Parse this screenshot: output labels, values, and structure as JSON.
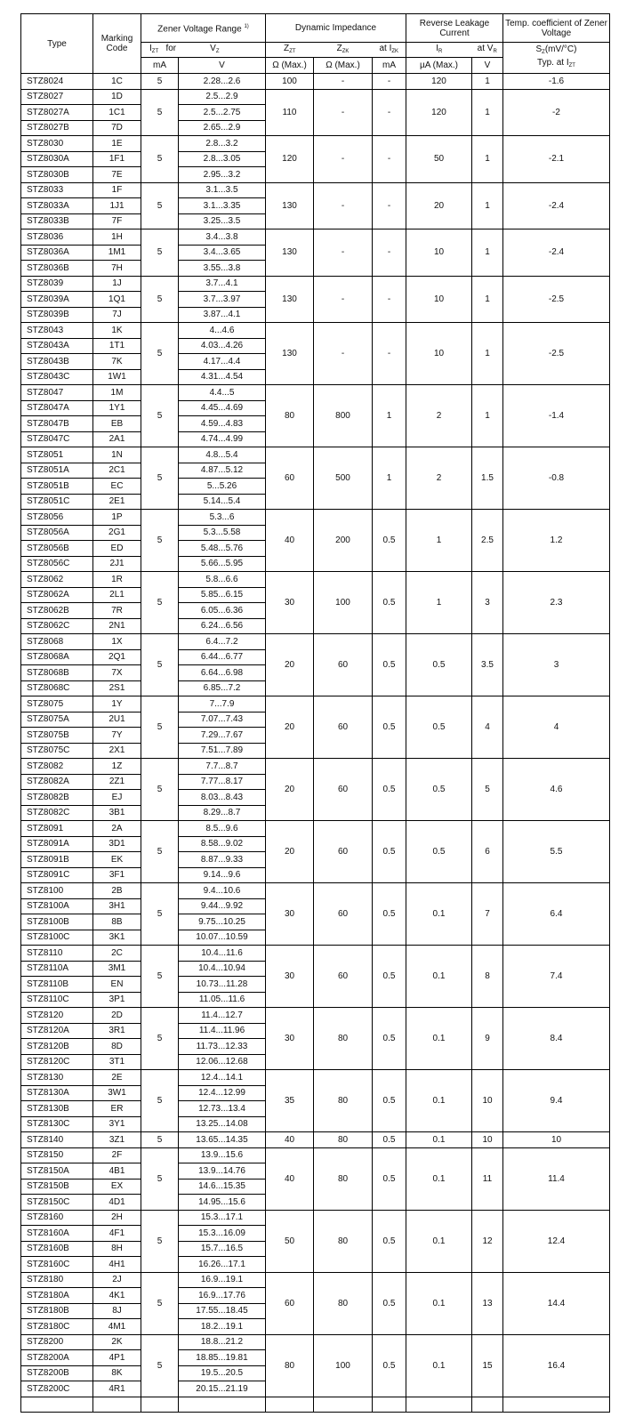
{
  "header": {
    "type": "Type",
    "marking": "Marking Code",
    "zener_range": "Zener Voltage Range",
    "zener_note": "1)",
    "dynamic": "Dynamic Impedance",
    "leakage": "Reverse Leakage Current",
    "tempco": "Temp. coefficient of Zener Voltage",
    "izt": "I",
    "izt_sub": "ZT",
    "for": "for",
    "vz": "V",
    "vz_sub": "Z",
    "zzt": "Z",
    "zzt_sub": "ZT",
    "zzk": "Z",
    "zzk_sub": "ZK",
    "atizk": "at I",
    "atizk_sub": "ZK",
    "ir": "I",
    "ir_sub": "R",
    "atvr": "at V",
    "atvr_sub": "R",
    "sz": "S",
    "sz_sub": "Z",
    "sz_unit": "(mV/°C)",
    "typ": "Typ. at I",
    "typ_sub": "ZT",
    "u_ma": "mA",
    "u_v": "V",
    "u_ohm1": "Ω (Max.)",
    "u_ohm2": "Ω (Max.)",
    "u_ma2": "mA",
    "u_ua": "µA (Max.)",
    "u_v2": "V"
  },
  "groups": [
    {
      "izt": "5",
      "zzt": "100",
      "zzk": "-",
      "izk": "-",
      "ir": "120",
      "vr": "1",
      "tc": "-1.6",
      "rows": [
        [
          "STZ8024",
          "1C",
          "2.28...2.6"
        ]
      ]
    },
    {
      "izt": "5",
      "zzt": "110",
      "zzk": "-",
      "izk": "-",
      "ir": "120",
      "vr": "1",
      "tc": "-2",
      "rows": [
        [
          "STZ8027",
          "1D",
          "2.5...2.9"
        ],
        [
          "STZ8027A",
          "1C1",
          "2.5...2.75"
        ],
        [
          "STZ8027B",
          "7D",
          "2.65...2.9"
        ]
      ]
    },
    {
      "izt": "5",
      "zzt": "120",
      "zzk": "-",
      "izk": "-",
      "ir": "50",
      "vr": "1",
      "tc": "-2.1",
      "rows": [
        [
          "STZ8030",
          "1E",
          "2.8...3.2"
        ],
        [
          "STZ8030A",
          "1F1",
          "2.8...3.05"
        ],
        [
          "STZ8030B",
          "7E",
          "2.95...3.2"
        ]
      ]
    },
    {
      "izt": "5",
      "zzt": "130",
      "zzk": "-",
      "izk": "-",
      "ir": "20",
      "vr": "1",
      "tc": "-2.4",
      "rows": [
        [
          "STZ8033",
          "1F",
          "3.1...3.5"
        ],
        [
          "STZ8033A",
          "1J1",
          "3.1...3.35"
        ],
        [
          "STZ8033B",
          "7F",
          "3.25...3.5"
        ]
      ]
    },
    {
      "izt": "5",
      "zzt": "130",
      "zzk": "-",
      "izk": "-",
      "ir": "10",
      "vr": "1",
      "tc": "-2.4",
      "rows": [
        [
          "STZ8036",
          "1H",
          "3.4...3.8"
        ],
        [
          "STZ8036A",
          "1M1",
          "3.4...3.65"
        ],
        [
          "STZ8036B",
          "7H",
          "3.55...3.8"
        ]
      ]
    },
    {
      "izt": "5",
      "zzt": "130",
      "zzk": "-",
      "izk": "-",
      "ir": "10",
      "vr": "1",
      "tc": "-2.5",
      "rows": [
        [
          "STZ8039",
          "1J",
          "3.7...4.1"
        ],
        [
          "STZ8039A",
          "1Q1",
          "3.7...3.97"
        ],
        [
          "STZ8039B",
          "7J",
          "3.87...4.1"
        ]
      ]
    },
    {
      "izt": "5",
      "zzt": "130",
      "zzk": "-",
      "izk": "-",
      "ir": "10",
      "vr": "1",
      "tc": "-2.5",
      "rows": [
        [
          "STZ8043",
          "1K",
          "4...4.6"
        ],
        [
          "STZ8043A",
          "1T1",
          "4.03...4.26"
        ],
        [
          "STZ8043B",
          "7K",
          "4.17...4.4"
        ],
        [
          "STZ8043C",
          "1W1",
          "4.31...4.54"
        ]
      ]
    },
    {
      "izt": "5",
      "zzt": "80",
      "zzk": "800",
      "izk": "1",
      "ir": "2",
      "vr": "1",
      "tc": "-1.4",
      "rows": [
        [
          "STZ8047",
          "1M",
          "4.4...5"
        ],
        [
          "STZ8047A",
          "1Y1",
          "4.45...4.69"
        ],
        [
          "STZ8047B",
          "EB",
          "4.59...4.83"
        ],
        [
          "STZ8047C",
          "2A1",
          "4.74...4.99"
        ]
      ]
    },
    {
      "izt": "5",
      "zzt": "60",
      "zzk": "500",
      "izk": "1",
      "ir": "2",
      "vr": "1.5",
      "tc": "-0.8",
      "rows": [
        [
          "STZ8051",
          "1N",
          "4.8...5.4"
        ],
        [
          "STZ8051A",
          "2C1",
          "4.87...5.12"
        ],
        [
          "STZ8051B",
          "EC",
          "5...5.26"
        ],
        [
          "STZ8051C",
          "2E1",
          "5.14...5.4"
        ]
      ]
    },
    {
      "izt": "5",
      "zzt": "40",
      "zzk": "200",
      "izk": "0.5",
      "ir": "1",
      "vr": "2.5",
      "tc": "1.2",
      "rows": [
        [
          "STZ8056",
          "1P",
          "5.3...6"
        ],
        [
          "STZ8056A",
          "2G1",
          "5.3...5.58"
        ],
        [
          "STZ8056B",
          "ED",
          "5.48...5.76"
        ],
        [
          "STZ8056C",
          "2J1",
          "5.66...5.95"
        ]
      ]
    },
    {
      "izt": "5",
      "zzt": "30",
      "zzk": "100",
      "izk": "0.5",
      "ir": "1",
      "vr": "3",
      "tc": "2.3",
      "rows": [
        [
          "STZ8062",
          "1R",
          "5.8...6.6"
        ],
        [
          "STZ8062A",
          "2L1",
          "5.85...6.15"
        ],
        [
          "STZ8062B",
          "7R",
          "6.05...6.36"
        ],
        [
          "STZ8062C",
          "2N1",
          "6.24...6.56"
        ]
      ]
    },
    {
      "izt": "5",
      "zzt": "20",
      "zzk": "60",
      "izk": "0.5",
      "ir": "0.5",
      "vr": "3.5",
      "tc": "3",
      "rows": [
        [
          "STZ8068",
          "1X",
          "6.4...7.2"
        ],
        [
          "STZ8068A",
          "2Q1",
          "6.44...6.77"
        ],
        [
          "STZ8068B",
          "7X",
          "6.64...6.98"
        ],
        [
          "STZ8068C",
          "2S1",
          "6.85...7.2"
        ]
      ]
    },
    {
      "izt": "5",
      "zzt": "20",
      "zzk": "60",
      "izk": "0.5",
      "ir": "0.5",
      "vr": "4",
      "tc": "4",
      "rows": [
        [
          "STZ8075",
          "1Y",
          "7...7.9"
        ],
        [
          "STZ8075A",
          "2U1",
          "7.07...7.43"
        ],
        [
          "STZ8075B",
          "7Y",
          "7.29...7.67"
        ],
        [
          "STZ8075C",
          "2X1",
          "7.51...7.89"
        ]
      ]
    },
    {
      "izt": "5",
      "zzt": "20",
      "zzk": "60",
      "izk": "0.5",
      "ir": "0.5",
      "vr": "5",
      "tc": "4.6",
      "rows": [
        [
          "STZ8082",
          "1Z",
          "7.7...8.7"
        ],
        [
          "STZ8082A",
          "2Z1",
          "7.77...8.17"
        ],
        [
          "STZ8082B",
          "EJ",
          "8.03...8.43"
        ],
        [
          "STZ8082C",
          "3B1",
          "8.29...8.7"
        ]
      ]
    },
    {
      "izt": "5",
      "zzt": "20",
      "zzk": "60",
      "izk": "0.5",
      "ir": "0.5",
      "vr": "6",
      "tc": "5.5",
      "rows": [
        [
          "STZ8091",
          "2A",
          "8.5...9.6"
        ],
        [
          "STZ8091A",
          "3D1",
          "8.58...9.02"
        ],
        [
          "STZ8091B",
          "EK",
          "8.87...9.33"
        ],
        [
          "STZ8091C",
          "3F1",
          "9.14...9.6"
        ]
      ]
    },
    {
      "izt": "5",
      "zzt": "30",
      "zzk": "60",
      "izk": "0.5",
      "ir": "0.1",
      "vr": "7",
      "tc": "6.4",
      "rows": [
        [
          "STZ8100",
          "2B",
          "9.4...10.6"
        ],
        [
          "STZ8100A",
          "3H1",
          "9.44...9.92"
        ],
        [
          "STZ8100B",
          "8B",
          "9.75...10.25"
        ],
        [
          "STZ8100C",
          "3K1",
          "10.07...10.59"
        ]
      ]
    },
    {
      "izt": "5",
      "zzt": "30",
      "zzk": "60",
      "izk": "0.5",
      "ir": "0.1",
      "vr": "8",
      "tc": "7.4",
      "rows": [
        [
          "STZ8110",
          "2C",
          "10.4...11.6"
        ],
        [
          "STZ8110A",
          "3M1",
          "10.4...10.94"
        ],
        [
          "STZ8110B",
          "EN",
          "10.73...11.28"
        ],
        [
          "STZ8110C",
          "3P1",
          "11.05...11.6"
        ]
      ]
    },
    {
      "izt": "5",
      "zzt": "30",
      "zzk": "80",
      "izk": "0.5",
      "ir": "0.1",
      "vr": "9",
      "tc": "8.4",
      "rows": [
        [
          "STZ8120",
          "2D",
          "11.4...12.7"
        ],
        [
          "STZ8120A",
          "3R1",
          "11.4...11.96"
        ],
        [
          "STZ8120B",
          "8D",
          "11.73...12.33"
        ],
        [
          "STZ8120C",
          "3T1",
          "12.06...12.68"
        ]
      ]
    },
    {
      "izt": "5",
      "zzt": "35",
      "zzk": "80",
      "izk": "0.5",
      "ir": "0.1",
      "vr": "10",
      "tc": "9.4",
      "rows": [
        [
          "STZ8130",
          "2E",
          "12.4...14.1"
        ],
        [
          "STZ8130A",
          "3W1",
          "12.4...12.99"
        ],
        [
          "STZ8130B",
          "ER",
          "12.73...13.4"
        ],
        [
          "STZ8130C",
          "3Y1",
          "13.25...14.08"
        ]
      ]
    },
    {
      "izt": "5",
      "zzt": "40",
      "zzk": "80",
      "izk": "0.5",
      "ir": "0.1",
      "vr": "10",
      "tc": "10",
      "rows": [
        [
          "STZ8140",
          "3Z1",
          "13.65...14.35"
        ]
      ]
    },
    {
      "izt": "5",
      "zzt": "40",
      "zzk": "80",
      "izk": "0.5",
      "ir": "0.1",
      "vr": "11",
      "tc": "11.4",
      "rows": [
        [
          "STZ8150",
          "2F",
          "13.9...15.6"
        ],
        [
          "STZ8150A",
          "4B1",
          "13.9...14.76"
        ],
        [
          "STZ8150B",
          "EX",
          "14.6...15.35"
        ],
        [
          "STZ8150C",
          "4D1",
          "14.95...15.6"
        ]
      ]
    },
    {
      "izt": "5",
      "zzt": "50",
      "zzk": "80",
      "izk": "0.5",
      "ir": "0.1",
      "vr": "12",
      "tc": "12.4",
      "rows": [
        [
          "STZ8160",
          "2H",
          "15.3...17.1"
        ],
        [
          "STZ8160A",
          "4F1",
          "15.3...16.09"
        ],
        [
          "STZ8160B",
          "8H",
          "15.7...16.5"
        ],
        [
          "STZ8160C",
          "4H1",
          "16.26...17.1"
        ]
      ]
    },
    {
      "izt": "5",
      "zzt": "60",
      "zzk": "80",
      "izk": "0.5",
      "ir": "0.1",
      "vr": "13",
      "tc": "14.4",
      "rows": [
        [
          "STZ8180",
          "2J",
          "16.9...19.1"
        ],
        [
          "STZ8180A",
          "4K1",
          "16.9...17.76"
        ],
        [
          "STZ8180B",
          "8J",
          "17.55...18.45"
        ],
        [
          "STZ8180C",
          "4M1",
          "18.2...19.1"
        ]
      ]
    },
    {
      "izt": "5",
      "zzt": "80",
      "zzk": "100",
      "izk": "0.5",
      "ir": "0.1",
      "vr": "15",
      "tc": "16.4",
      "rows": [
        [
          "STZ8200",
          "2K",
          "18.8...21.2"
        ],
        [
          "STZ8200A",
          "4P1",
          "18.85...19.81"
        ],
        [
          "STZ8200B",
          "8K",
          "19.5...20.5"
        ],
        [
          "STZ8200C",
          "4R1",
          "20.15...21.19"
        ]
      ]
    }
  ]
}
